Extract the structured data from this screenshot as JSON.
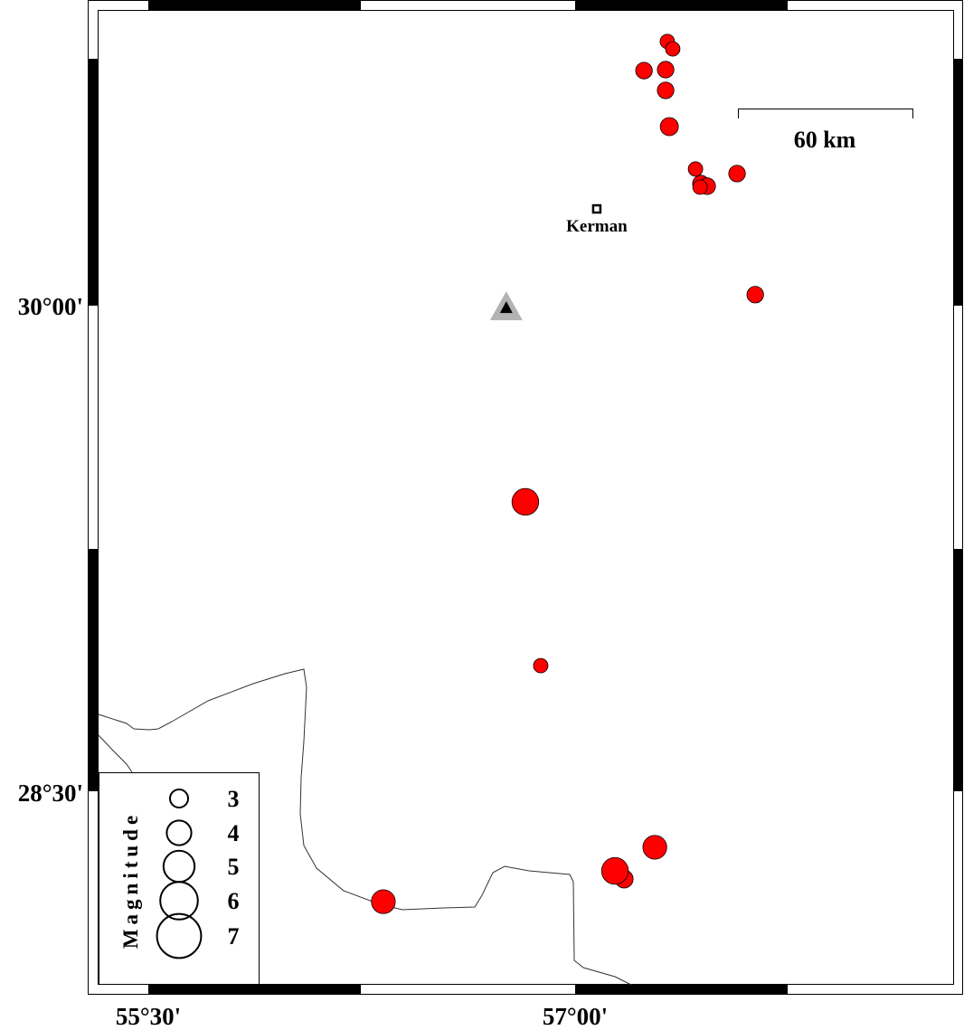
{
  "map": {
    "frame": {
      "lat_labels": [
        "30°00'",
        "28°30'"
      ],
      "lon_labels": [
        "55°30'",
        "57°00'"
      ]
    },
    "scale_bar": {
      "label": "60 km",
      "length_km": 60
    },
    "city": {
      "name": "Kerman",
      "lon": 57.076,
      "lat": 30.296,
      "icon": "square-marker-icon"
    },
    "station": {
      "lon": 56.758,
      "lat": 29.994,
      "icon": "triangle-station-icon",
      "fill": "#000000",
      "halo": "#b3b3b3"
    },
    "event_color": "#ff0000",
    "events": [
      {
        "lon": 57.324,
        "lat": 30.816,
        "mag": 2.5
      },
      {
        "lon": 57.343,
        "lat": 30.793,
        "mag": 2.5
      },
      {
        "lon": 57.242,
        "lat": 30.726,
        "mag": 2.8
      },
      {
        "lon": 57.318,
        "lat": 30.729,
        "mag": 2.8
      },
      {
        "lon": 57.318,
        "lat": 30.665,
        "mag": 2.8
      },
      {
        "lon": 57.331,
        "lat": 30.553,
        "mag": 3.0
      },
      {
        "lon": 57.423,
        "lat": 30.422,
        "mag": 2.5
      },
      {
        "lon": 57.442,
        "lat": 30.377,
        "mag": 2.8
      },
      {
        "lon": 57.464,
        "lat": 30.369,
        "mag": 2.8
      },
      {
        "lon": 57.439,
        "lat": 30.366,
        "mag": 2.5
      },
      {
        "lon": 57.569,
        "lat": 30.408,
        "mag": 2.8
      },
      {
        "lon": 57.633,
        "lat": 30.034,
        "mag": 2.8
      },
      {
        "lon": 56.825,
        "lat": 29.394,
        "mag": 4.2
      },
      {
        "lon": 56.879,
        "lat": 28.888,
        "mag": 2.5
      },
      {
        "lon": 57.28,
        "lat": 28.327,
        "mag": 3.8
      },
      {
        "lon": 57.172,
        "lat": 28.229,
        "mag": 3.0
      },
      {
        "lon": 57.14,
        "lat": 28.254,
        "mag": 4.2
      },
      {
        "lon": 56.326,
        "lat": 28.159,
        "mag": 3.8
      }
    ],
    "legend": {
      "title": "Magnitude",
      "items": [
        {
          "mag": 3,
          "label": "3"
        },
        {
          "mag": 4,
          "label": "4"
        },
        {
          "mag": 5,
          "label": "5"
        },
        {
          "mag": 6,
          "label": "6"
        },
        {
          "mag": 7,
          "label": "7"
        }
      ]
    }
  }
}
